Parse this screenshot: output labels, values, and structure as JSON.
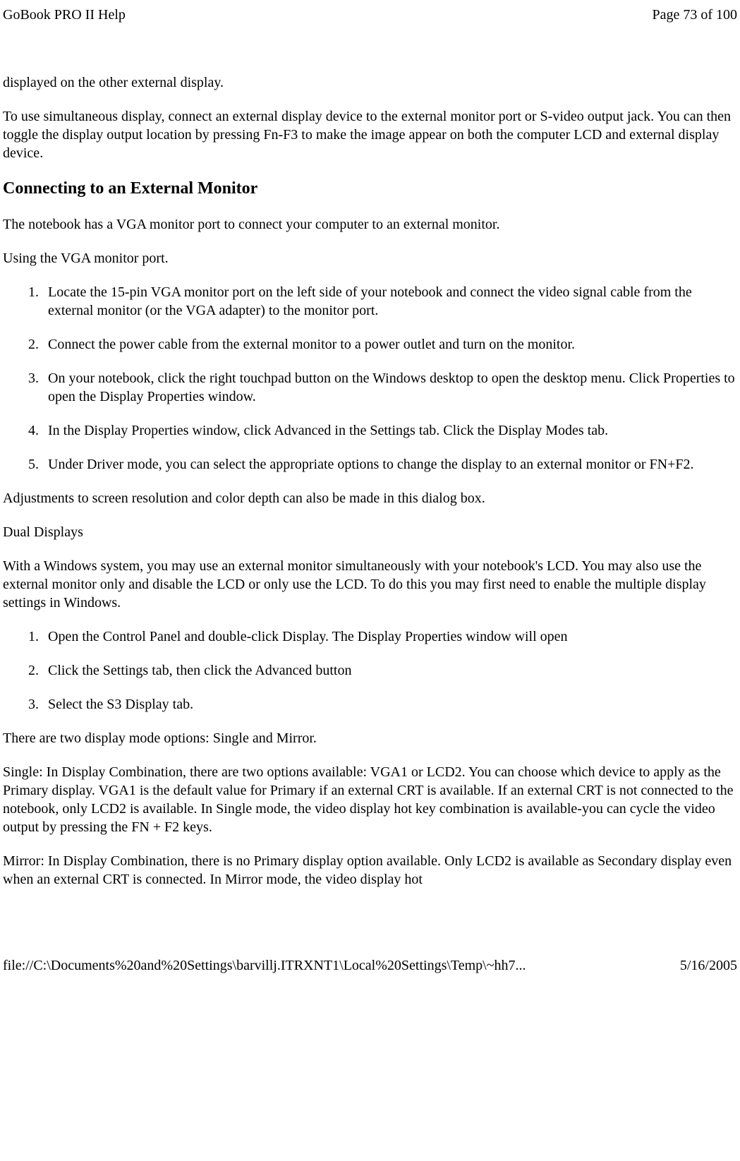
{
  "header": {
    "title": "GoBook PRO II Help",
    "page_info": "Page 73 of 100"
  },
  "content": {
    "para_continued": "displayed on the other external display.",
    "para_simultaneous": "To use simultaneous display, connect an external display device to the external monitor port or S-video output jack. You can then toggle the display output location by pressing Fn-F3 to make the image appear on both the computer LCD and external display device.",
    "heading_connecting": "Connecting to an External Monitor",
    "para_vga_port": "The notebook has a VGA monitor port to connect your computer to an external monitor.",
    "para_using_vga": "Using the VGA monitor port.",
    "vga_steps": {
      "step1": "Locate the 15-pin VGA monitor port on the left side of your notebook and connect the video signal cable from the external monitor (or the VGA adapter) to the monitor port.",
      "step2": "Connect the power cable from the external monitor to a power outlet and turn on the monitor.",
      "step3": "On your notebook, click the right touchpad button on the Windows desktop to open the desktop menu. Click Properties to open the Display Properties window.",
      "step4": "In the Display Properties window, click Advanced in the Settings tab. Click the Display Modes tab.",
      "step5": "Under Driver mode, you can select the appropriate options to change the display to an external monitor or FN+F2."
    },
    "para_adjustments": "Adjustments to screen resolution and color depth can also be made in this dialog box.",
    "para_dual_displays": "Dual Displays",
    "para_dual_desc": "With a Windows system, you may use an external monitor simultaneously with your notebook's LCD. You may also use the external monitor only and disable the LCD or only use the LCD. To do this you may first need to enable the multiple display settings in Windows.",
    "dual_steps": {
      "step1": "Open the Control Panel and double-click Display. The Display Properties window will open",
      "step2": " Click the Settings tab, then click the Advanced button",
      "step3": "Select the S3 Display tab."
    },
    "para_two_modes": "There are two display mode options: Single and Mirror.",
    "para_single": "Single:  In Display Combination, there are two options available: VGA1 or LCD2. You can choose which device to apply as the Primary display. VGA1 is the default value for Primary if an external CRT is available. If an external CRT is not connected to the notebook, only LCD2 is available. In Single mode, the video display hot key combination is available-you can cycle the video output by pressing the FN + F2 keys.",
    "para_mirror": "Mirror:  In Display Combination, there is no Primary display option available. Only LCD2 is available as Secondary display even when an external CRT is connected. In Mirror mode, the video display hot"
  },
  "footer": {
    "path": "file://C:\\Documents%20and%20Settings\\barvillj.ITRXNT1\\Local%20Settings\\Temp\\~hh7...",
    "date": "5/16/2005"
  }
}
